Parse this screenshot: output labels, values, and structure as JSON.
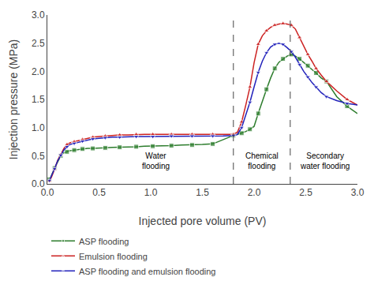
{
  "chart_data": {
    "type": "line",
    "xlabel": "Injected pore volume (PV)",
    "ylabel": "Injection pressure (MPa)",
    "xlim": [
      0,
      3.0
    ],
    "ylim": [
      0.0,
      3.0
    ],
    "xticks": [
      {
        "value": 0.0,
        "label": "0.0"
      },
      0.5,
      {
        "value": 1.0,
        "label": "1.0"
      },
      1.5,
      {
        "value": 2.0,
        "label": "2.0"
      },
      2.5,
      {
        "value": 3.0,
        "label": "3.0"
      }
    ],
    "yticks": [
      {
        "value": 0.0,
        "label": "0.0"
      },
      0.5,
      {
        "value": 1.0,
        "label": "1.0"
      },
      1.5,
      {
        "value": 2.0,
        "label": "2.0"
      },
      2.5,
      {
        "value": 3.0,
        "label": "3.0"
      }
    ],
    "grid": false,
    "legend": "below",
    "vlines": [
      1.8,
      2.35
    ],
    "annotations": [
      {
        "text": "Water\nflooding",
        "x": 1.05,
        "y": 0.6
      },
      {
        "text": "Chemical\nflooding",
        "x": 2.075,
        "y": 0.6
      },
      {
        "text": "Secondary\nwater flooding",
        "x": 2.68,
        "y": 0.6
      }
    ],
    "series": [
      {
        "name": "ASP flooding",
        "color": "#2d7d2d",
        "marker": "square",
        "x": [
          0.02,
          0.04,
          0.07,
          0.1,
          0.13,
          0.16,
          0.19,
          0.22,
          0.26,
          0.3,
          0.34,
          0.39,
          0.44,
          0.5,
          0.56,
          0.63,
          0.7,
          0.78,
          0.86,
          0.94,
          1.02,
          1.11,
          1.2,
          1.3,
          1.4,
          1.5,
          1.6,
          1.7,
          1.8,
          1.84,
          1.88,
          1.92,
          1.96,
          2.0,
          2.04,
          2.08,
          2.12,
          2.16,
          2.2,
          2.24,
          2.28,
          2.32,
          2.36,
          2.4,
          2.44,
          2.48,
          2.52,
          2.56,
          2.6,
          2.65,
          2.7,
          2.8,
          2.9,
          3.0
        ],
        "values": [
          0.08,
          0.15,
          0.28,
          0.4,
          0.5,
          0.55,
          0.57,
          0.59,
          0.6,
          0.61,
          0.62,
          0.63,
          0.63,
          0.64,
          0.64,
          0.65,
          0.65,
          0.66,
          0.66,
          0.67,
          0.67,
          0.68,
          0.68,
          0.69,
          0.69,
          0.7,
          0.71,
          0.79,
          0.86,
          0.88,
          0.9,
          0.93,
          0.97,
          1.02,
          1.25,
          1.48,
          1.68,
          1.88,
          2.05,
          2.16,
          2.22,
          2.27,
          2.3,
          2.27,
          2.22,
          2.16,
          2.1,
          2.03,
          1.97,
          1.88,
          1.82,
          1.55,
          1.38,
          1.25
        ]
      },
      {
        "name": "Emulsion flooding",
        "color": "#cc2222",
        "marker": "triangle-up",
        "x": [
          0.02,
          0.04,
          0.07,
          0.1,
          0.13,
          0.16,
          0.19,
          0.22,
          0.26,
          0.3,
          0.34,
          0.39,
          0.44,
          0.5,
          0.56,
          0.63,
          0.7,
          0.78,
          0.86,
          0.94,
          1.02,
          1.11,
          1.2,
          1.3,
          1.4,
          1.5,
          1.6,
          1.7,
          1.8,
          1.84,
          1.88,
          1.92,
          1.96,
          2.0,
          2.04,
          2.08,
          2.12,
          2.16,
          2.2,
          2.24,
          2.28,
          2.32,
          2.36,
          2.4,
          2.44,
          2.48,
          2.52,
          2.56,
          2.6,
          2.65,
          2.7,
          2.8,
          2.9,
          3.0
        ],
        "values": [
          0.05,
          0.12,
          0.26,
          0.42,
          0.52,
          0.63,
          0.7,
          0.73,
          0.75,
          0.77,
          0.79,
          0.81,
          0.83,
          0.84,
          0.85,
          0.86,
          0.87,
          0.87,
          0.88,
          0.88,
          0.88,
          0.88,
          0.88,
          0.88,
          0.88,
          0.88,
          0.88,
          0.88,
          0.88,
          0.92,
          1.1,
          1.4,
          1.72,
          2.15,
          2.48,
          2.63,
          2.72,
          2.78,
          2.82,
          2.84,
          2.85,
          2.84,
          2.82,
          2.75,
          2.6,
          2.45,
          2.3,
          2.18,
          2.05,
          1.93,
          1.82,
          1.65,
          1.5,
          1.4
        ]
      },
      {
        "name": "ASP flooding and emulsion flooding",
        "color": "#2222bb",
        "marker": "triangle-down",
        "x": [
          0.02,
          0.04,
          0.07,
          0.1,
          0.13,
          0.16,
          0.19,
          0.22,
          0.26,
          0.3,
          0.34,
          0.39,
          0.44,
          0.5,
          0.56,
          0.63,
          0.7,
          0.78,
          0.86,
          0.94,
          1.02,
          1.11,
          1.2,
          1.3,
          1.4,
          1.5,
          1.6,
          1.7,
          1.8,
          1.84,
          1.88,
          1.92,
          1.96,
          2.0,
          2.04,
          2.08,
          2.12,
          2.16,
          2.2,
          2.24,
          2.28,
          2.32,
          2.36,
          2.4,
          2.44,
          2.48,
          2.52,
          2.56,
          2.6,
          2.65,
          2.7,
          2.8,
          2.9,
          3.0
        ],
        "values": [
          0.06,
          0.14,
          0.27,
          0.41,
          0.51,
          0.6,
          0.66,
          0.7,
          0.72,
          0.74,
          0.76,
          0.78,
          0.8,
          0.81,
          0.82,
          0.83,
          0.83,
          0.84,
          0.84,
          0.84,
          0.84,
          0.84,
          0.85,
          0.85,
          0.85,
          0.85,
          0.85,
          0.85,
          0.86,
          0.88,
          1.0,
          1.22,
          1.45,
          1.72,
          1.98,
          2.18,
          2.33,
          2.43,
          2.48,
          2.5,
          2.48,
          2.42,
          2.35,
          2.25,
          2.12,
          2.0,
          1.9,
          1.8,
          1.72,
          1.62,
          1.55,
          1.48,
          1.43,
          1.4
        ]
      }
    ]
  }
}
